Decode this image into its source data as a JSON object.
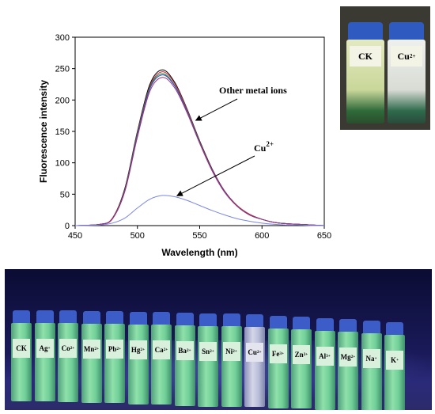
{
  "chart_data": {
    "type": "line",
    "xlabel": "Wavelength (nm)",
    "ylabel": "Fluorescence intensity",
    "xlim": [
      450,
      650
    ],
    "ylim": [
      0,
      300
    ],
    "xticks": [
      450,
      500,
      550,
      600,
      650
    ],
    "yticks": [
      0,
      50,
      100,
      150,
      200,
      250,
      300
    ],
    "annotations": [
      {
        "text": "Other metal ions",
        "target_x": 545,
        "target_y": 165
      },
      {
        "text": "Cu",
        "sup": "2+",
        "target_x": 528,
        "target_y": 45
      }
    ],
    "series": [
      {
        "peak_x": 520,
        "peak_y": 248,
        "color": "#000000",
        "values_x": [
          450,
          470,
          480,
          490,
          500,
          510,
          520,
          530,
          540,
          550,
          560,
          570,
          580,
          590,
          600,
          610,
          620,
          630,
          640,
          650
        ],
        "values_y": [
          0,
          2,
          12,
          60,
          150,
          225,
          248,
          228,
          185,
          135,
          90,
          55,
          32,
          18,
          10,
          5,
          3,
          2,
          1,
          0
        ]
      },
      {
        "peak_x": 520,
        "peak_y": 245,
        "color": "#d0203a",
        "values_x": [
          450,
          470,
          480,
          490,
          500,
          510,
          520,
          530,
          540,
          550,
          560,
          570,
          580,
          590,
          600,
          610,
          620,
          630,
          640,
          650
        ],
        "values_y": [
          0,
          2,
          12,
          58,
          148,
          222,
          245,
          226,
          184,
          134,
          89,
          55,
          32,
          18,
          10,
          5,
          3,
          2,
          1,
          0
        ]
      },
      {
        "peak_x": 519,
        "peak_y": 242,
        "color": "#1a8a3a",
        "values_x": [
          450,
          470,
          480,
          490,
          500,
          510,
          520,
          530,
          540,
          550,
          560,
          570,
          580,
          590,
          600,
          610,
          620,
          630,
          640,
          650
        ],
        "values_y": [
          0,
          2,
          11,
          57,
          146,
          220,
          242,
          223,
          182,
          133,
          88,
          54,
          31,
          17,
          10,
          5,
          3,
          2,
          1,
          0
        ]
      },
      {
        "peak_x": 520,
        "peak_y": 240,
        "color": "#3050c0",
        "values_x": [
          450,
          470,
          480,
          490,
          500,
          510,
          520,
          530,
          540,
          550,
          560,
          570,
          580,
          590,
          600,
          610,
          620,
          630,
          640,
          650
        ],
        "values_y": [
          0,
          2,
          11,
          56,
          144,
          218,
          240,
          222,
          181,
          132,
          88,
          54,
          31,
          17,
          10,
          5,
          3,
          2,
          1,
          0
        ]
      },
      {
        "peak_x": 520,
        "peak_y": 236,
        "color": "#a03080",
        "values_x": [
          450,
          470,
          480,
          490,
          500,
          510,
          520,
          530,
          540,
          550,
          560,
          570,
          580,
          590,
          600,
          610,
          620,
          630,
          640,
          650
        ],
        "values_y": [
          0,
          2,
          11,
          55,
          141,
          214,
          236,
          219,
          179,
          131,
          87,
          53,
          31,
          17,
          10,
          5,
          3,
          2,
          1,
          0
        ]
      },
      {
        "peak_x": 520,
        "peak_y": 48,
        "color": "#7b86e8",
        "values_x": [
          450,
          470,
          480,
          490,
          500,
          510,
          520,
          530,
          540,
          550,
          560,
          570,
          580,
          590,
          600,
          610,
          620,
          630,
          640,
          650
        ],
        "values_y": [
          0,
          1,
          4,
          12,
          28,
          42,
          48,
          46,
          40,
          32,
          24,
          17,
          11,
          7,
          4,
          2,
          1,
          1,
          0,
          0
        ]
      }
    ]
  },
  "top_photo": {
    "left_vial": "CK",
    "right_vial": "Cu",
    "right_vial_sup": "2+"
  },
  "bottom_photo": {
    "vials": [
      {
        "label": "CK",
        "sup": ""
      },
      {
        "label": "Ag",
        "sup": "+"
      },
      {
        "label": "Co",
        "sup": "2+"
      },
      {
        "label": "Mn",
        "sup": "2+"
      },
      {
        "label": "Pb",
        "sup": "2+"
      },
      {
        "label": "Hg",
        "sup": "2+"
      },
      {
        "label": "Ca",
        "sup": "2+"
      },
      {
        "label": "Ba",
        "sup": "2+"
      },
      {
        "label": "Sn",
        "sup": "2+"
      },
      {
        "label": "Ni",
        "sup": "2+"
      },
      {
        "label": "Cu",
        "sup": "2+"
      },
      {
        "label": "Fe",
        "sup": "3+"
      },
      {
        "label": "Zn",
        "sup": "2+"
      },
      {
        "label": "Al",
        "sup": "3+"
      },
      {
        "label": "Mg",
        "sup": "2+"
      },
      {
        "label": "Na",
        "sup": "+"
      },
      {
        "label": "K",
        "sup": "+"
      }
    ]
  }
}
